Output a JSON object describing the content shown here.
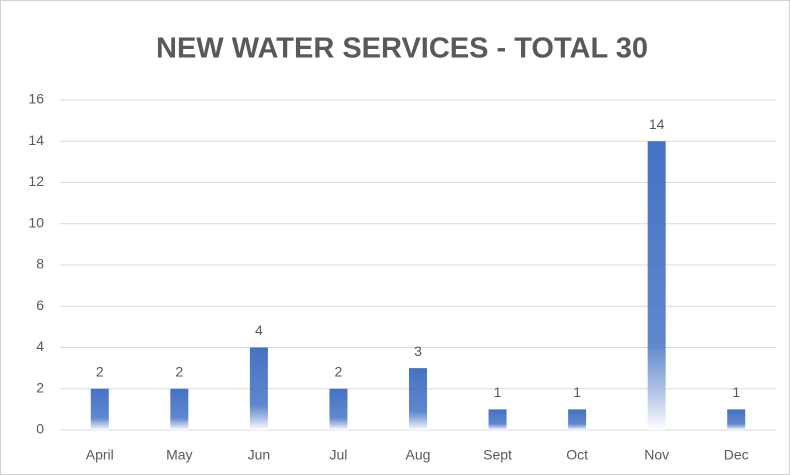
{
  "chart_data": {
    "type": "bar",
    "title": "NEW WATER SERVICES - TOTAL 30",
    "categories": [
      "April",
      "May",
      "Jun",
      "Jul",
      "Aug",
      "Sept",
      "Oct",
      "Nov",
      "Dec"
    ],
    "values": [
      2,
      2,
      4,
      2,
      3,
      1,
      1,
      14,
      1
    ],
    "color": "#4472c4",
    "ylim": [
      0,
      16
    ],
    "yticks": [
      0,
      2,
      4,
      6,
      8,
      10,
      12,
      14,
      16
    ],
    "grid": true
  }
}
